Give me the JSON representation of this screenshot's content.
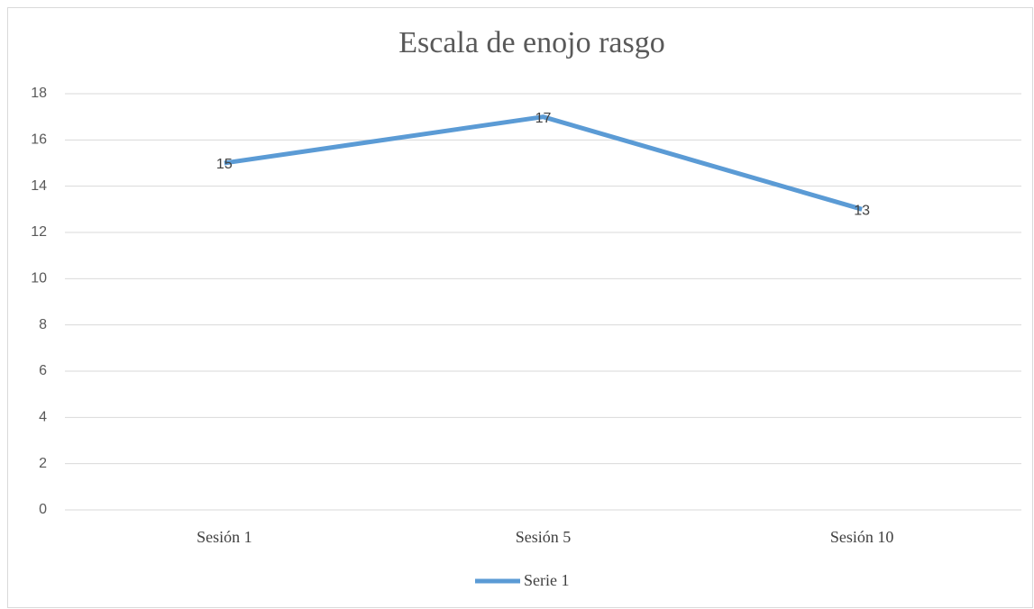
{
  "chart_data": {
    "type": "line",
    "title": "Escala de enojo rasgo",
    "categories": [
      "Sesión 1",
      "Sesión 5",
      "Sesión 10"
    ],
    "series": [
      {
        "name": "Serie 1",
        "color": "#5b9bd5",
        "values": [
          15,
          17,
          13
        ]
      }
    ],
    "ylim": [
      0,
      18
    ],
    "yticks": [
      0,
      2,
      4,
      6,
      8,
      10,
      12,
      14,
      16,
      18
    ],
    "grid": true,
    "legend": "bottom"
  }
}
